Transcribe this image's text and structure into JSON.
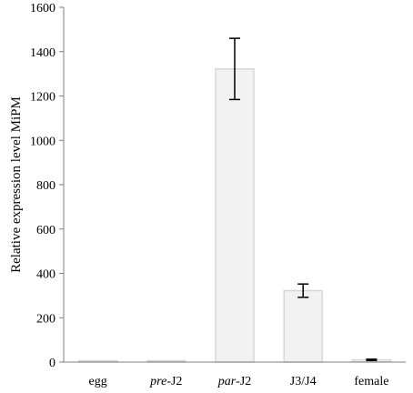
{
  "chart_data": {
    "type": "bar",
    "categories": [
      {
        "pre": "",
        "em": "",
        "post": "egg"
      },
      {
        "pre": "",
        "em": "pre",
        "post": "-J2"
      },
      {
        "pre": "",
        "em": "par",
        "post": "-J2"
      },
      {
        "pre": "",
        "em": "",
        "post": "J3/J4"
      },
      {
        "pre": "",
        "em": "",
        "post": "female"
      }
    ],
    "values": [
      3,
      3,
      1322,
      322,
      10
    ],
    "errors": [
      0,
      0,
      138,
      30,
      3
    ],
    "title": "",
    "xlabel": "",
    "ylabel": "Relative expression level MiPM",
    "ylim": [
      0,
      1600
    ],
    "yticks": [
      0,
      200,
      400,
      600,
      800,
      1000,
      1200,
      1400,
      1600
    ],
    "grid": false,
    "legend": "none",
    "bar_fill": "#f2f2f2",
    "bar_stroke": "#d6d6d6",
    "axis_color": "#7f7f7f",
    "error_color": "#000000"
  }
}
